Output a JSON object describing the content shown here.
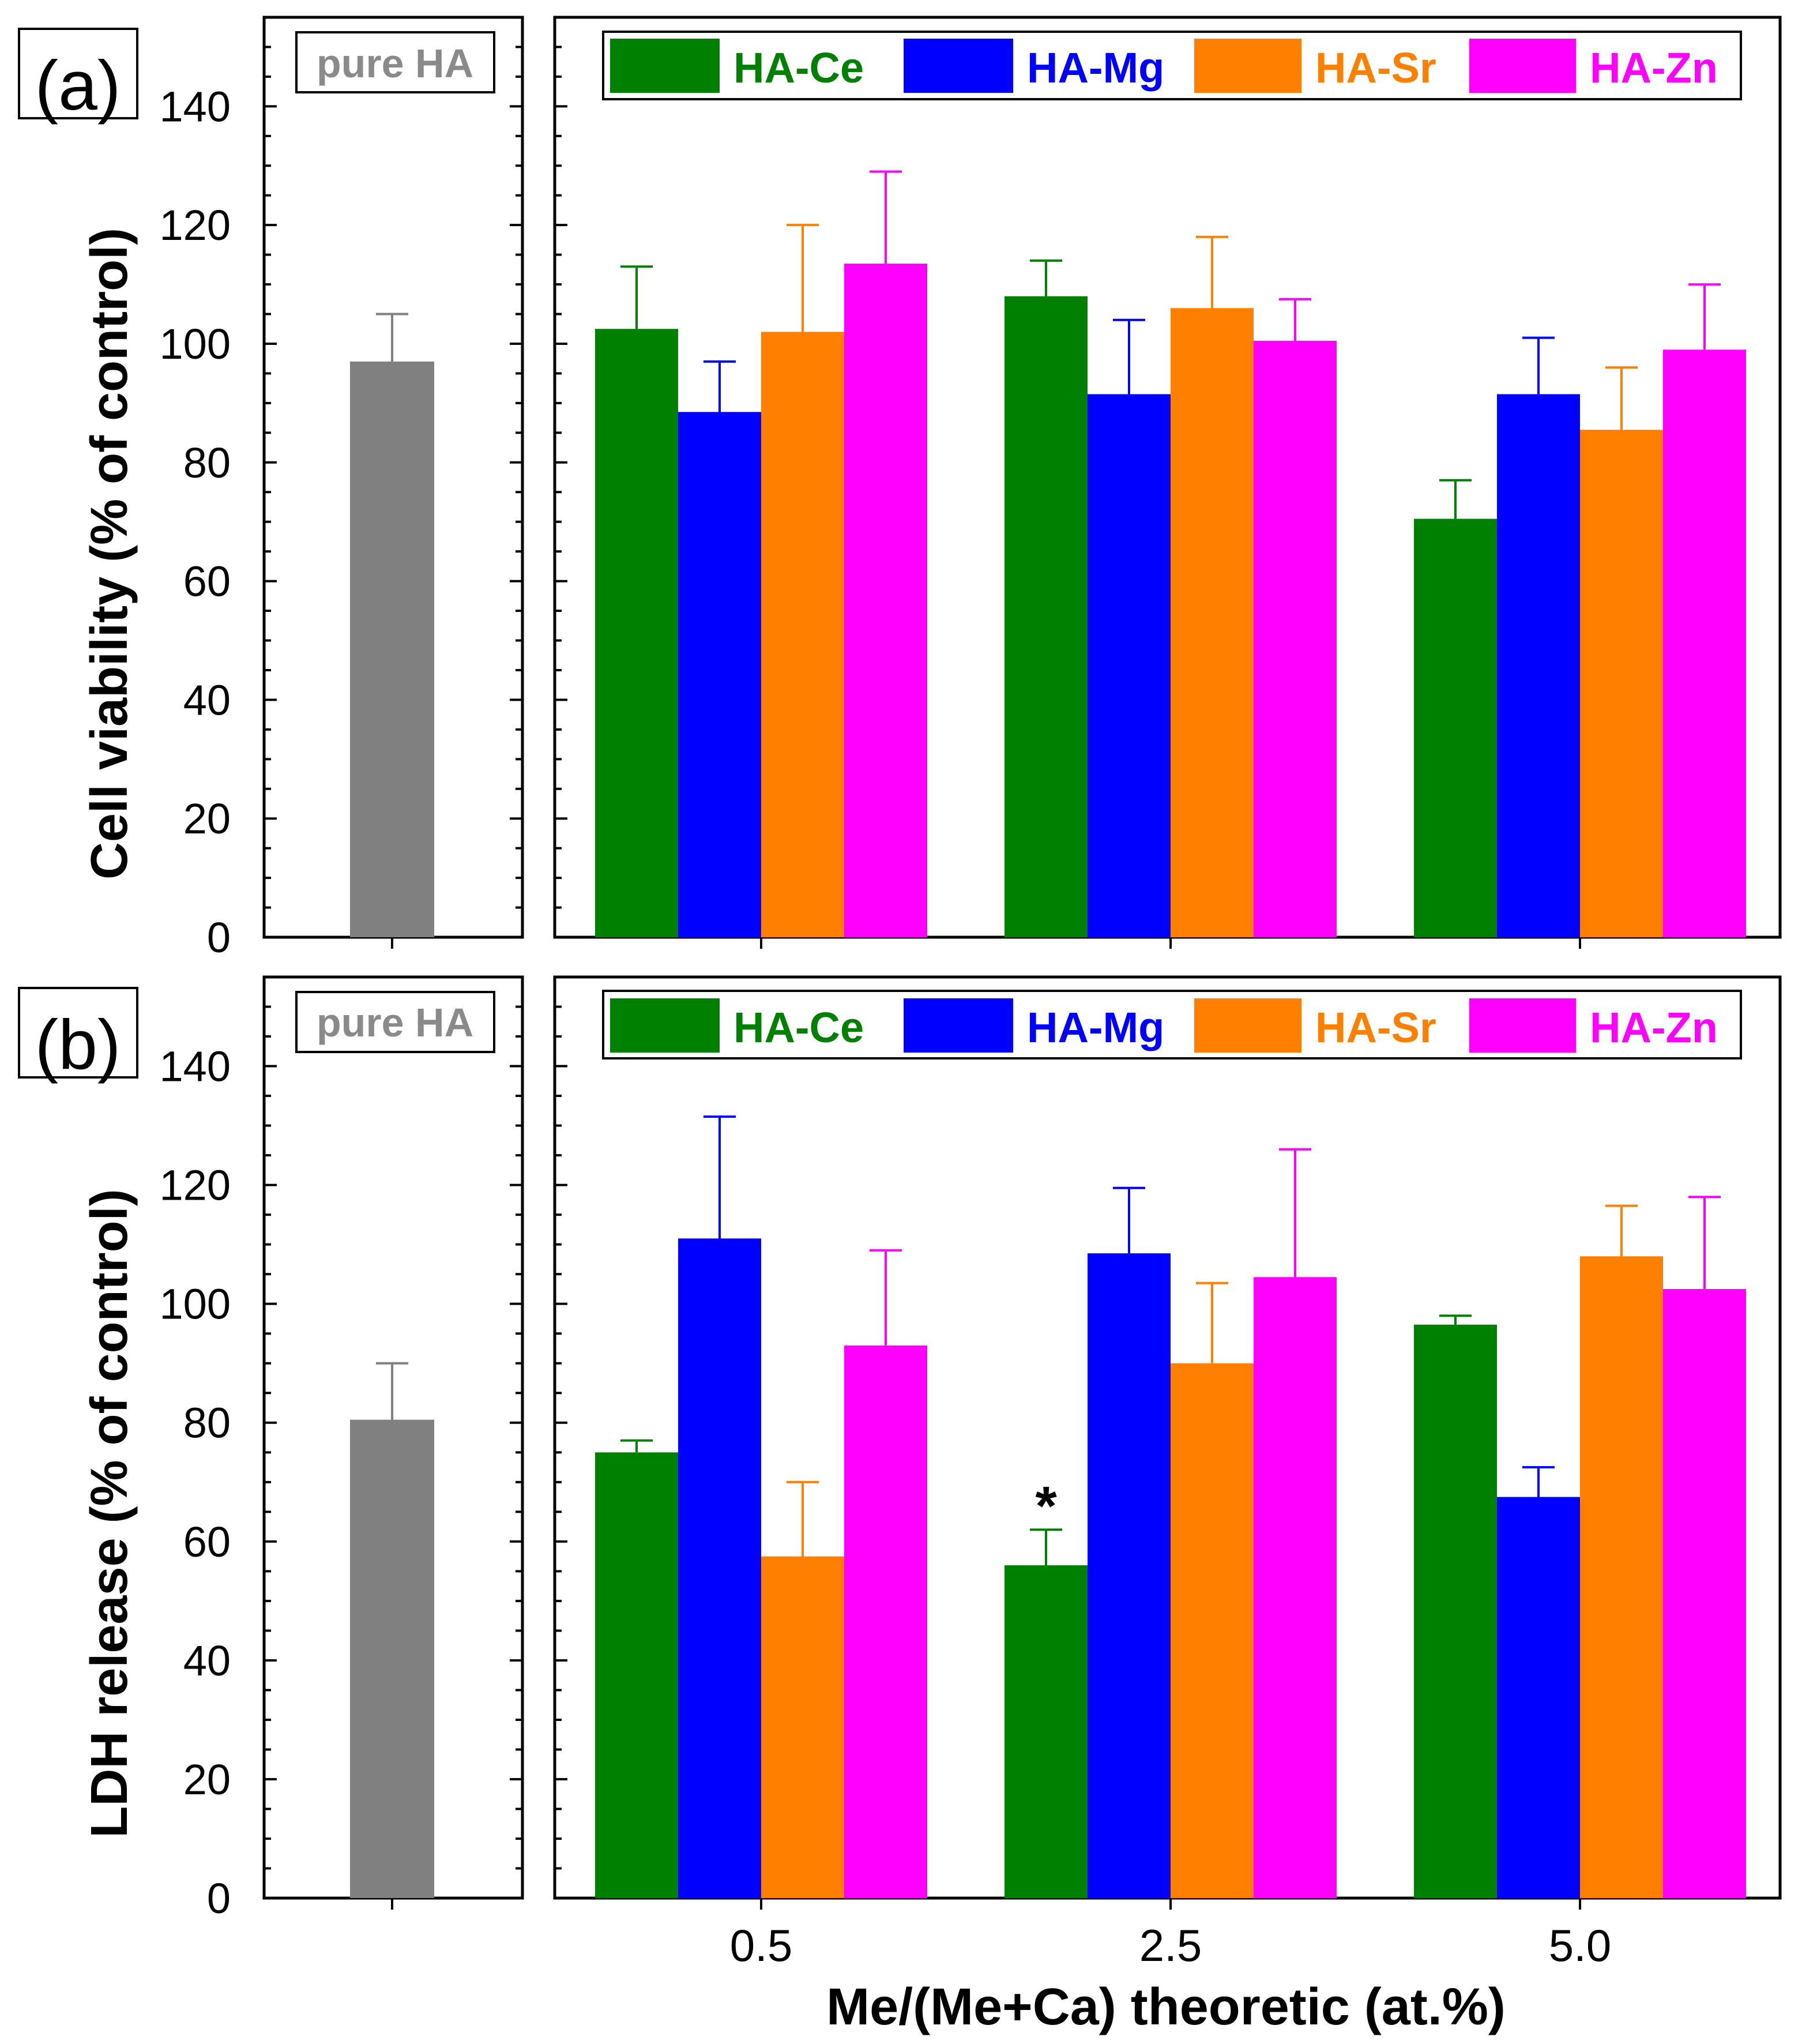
{
  "chart_data": [
    {
      "type": "bar",
      "panel_label": "(a)",
      "ylabel": "Cell viability (% of control)",
      "xlabel": "Me/(Me+Ca) theoretic (at.%)",
      "ylim": [
        0,
        155
      ],
      "y_ticks": [
        0,
        20,
        40,
        60,
        80,
        100,
        120,
        140
      ],
      "reference": {
        "label": "pure HA",
        "value": 97,
        "error": 8,
        "color": "#808080"
      },
      "categories": [
        "0.5",
        "2.5",
        "5.0"
      ],
      "series": [
        {
          "name": "HA-Ce",
          "color": "#008000",
          "values": [
            102.5,
            108,
            70.5
          ],
          "errors": [
            10.5,
            6,
            6.5
          ]
        },
        {
          "name": "HA-Mg",
          "color": "#0000ff",
          "values": [
            88.5,
            91.5,
            91.5
          ],
          "errors": [
            8.5,
            12.5,
            9.5
          ]
        },
        {
          "name": "HA-Sr",
          "color": "#ff8000",
          "values": [
            102,
            106,
            85.5
          ],
          "errors": [
            18,
            12,
            10.5
          ]
        },
        {
          "name": "HA-Zn",
          "color": "#ff00ff",
          "values": [
            113.5,
            100.5,
            99
          ],
          "errors": [
            15.5,
            7,
            11
          ]
        }
      ],
      "annotations": []
    },
    {
      "type": "bar",
      "panel_label": "(b)",
      "ylabel": "LDH release (% of control)",
      "xlabel": "Me/(Me+Ca) theoretic (at.%)",
      "ylim": [
        0,
        155
      ],
      "y_ticks": [
        0,
        20,
        40,
        60,
        80,
        100,
        120,
        140
      ],
      "reference": {
        "label": "pure HA",
        "value": 80.5,
        "error": 9.5,
        "color": "#808080"
      },
      "categories": [
        "0.5",
        "2.5",
        "5.0"
      ],
      "series": [
        {
          "name": "HA-Ce",
          "color": "#008000",
          "values": [
            75,
            56,
            96.5
          ],
          "errors": [
            2,
            6,
            1.5
          ]
        },
        {
          "name": "HA-Mg",
          "color": "#0000ff",
          "values": [
            111,
            108.5,
            67.5
          ],
          "errors": [
            20.5,
            11,
            5
          ]
        },
        {
          "name": "HA-Sr",
          "color": "#ff8000",
          "values": [
            57.5,
            90,
            108
          ],
          "errors": [
            12.5,
            13.5,
            8.5
          ]
        },
        {
          "name": "HA-Zn",
          "color": "#ff00ff",
          "values": [
            93,
            104.5,
            102.5
          ],
          "errors": [
            16,
            21.5,
            15.5
          ]
        }
      ],
      "annotations": [
        {
          "text": "*",
          "category": "2.5",
          "series": "HA-Ce"
        }
      ]
    }
  ]
}
